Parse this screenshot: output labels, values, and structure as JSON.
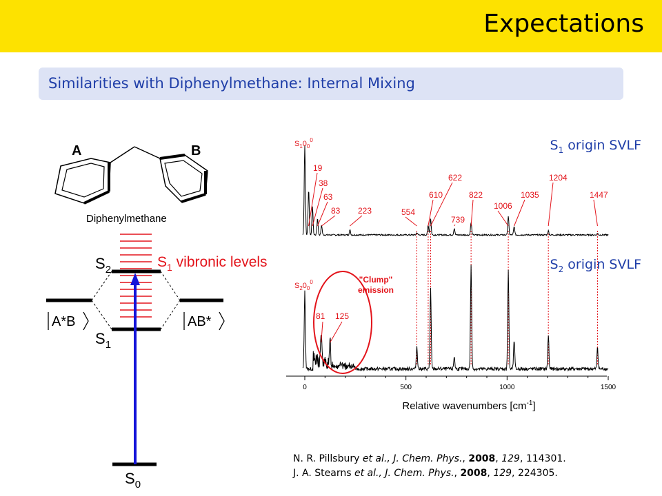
{
  "header": {
    "title": "Expectations",
    "banner_color": "#fde200"
  },
  "subtitle": {
    "text": "Similarities with Diphenylmethane: Internal Mixing",
    "color": "#1f3ea8"
  },
  "molecule": {
    "label_a": "A",
    "label_b": "B",
    "name": "Diphenylmethane"
  },
  "energy_diagram": {
    "s2": "S",
    "s2_sub": "2",
    "s1": "S",
    "s1_sub": "1",
    "s0": "S",
    "s0_sub": "0",
    "vibronic_s": "S",
    "vibronic_sub": "1",
    "vibronic_text": " vibronic levels",
    "left_ket": "A*B",
    "right_ket": "AB*",
    "vibronic_color": "#e3141b",
    "arrow_color": "#1414d9"
  },
  "chart_data": {
    "type": "line",
    "xlabel": "Relative wavenumbers [cm",
    "xlabel_sup": "-1",
    "xlabel_close": "]",
    "xlim": [
      0,
      1500
    ],
    "x_ticks": [
      0,
      500,
      1000,
      1500
    ],
    "panels": [
      {
        "label_s": "S",
        "label_sub": "1",
        "label_text": " origin SVLF",
        "origin_s": "S",
        "origin_sub": "1",
        "origin_main": "0",
        "origin_sub2": "0",
        "origin_sup": "0",
        "peaks": [
          {
            "label": "19",
            "x": 19,
            "h": 0.55
          },
          {
            "label": "38",
            "x": 38,
            "h": 0.35
          },
          {
            "label": "63",
            "x": 63,
            "h": 0.2
          },
          {
            "label": "83",
            "x": 83,
            "h": 0.12
          },
          {
            "label": "223",
            "x": 223,
            "h": 0.06
          },
          {
            "label": "554",
            "x": 554,
            "h": 0.03
          },
          {
            "label": "610",
            "x": 610,
            "h": 0.12
          },
          {
            "label": "622",
            "x": 622,
            "h": 0.2
          },
          {
            "label": "739",
            "x": 739,
            "h": 0.08
          },
          {
            "label": "822",
            "x": 822,
            "h": 0.15
          },
          {
            "label": "1006",
            "x": 1006,
            "h": 0.22
          },
          {
            "label": "1035",
            "x": 1035,
            "h": 0.1
          },
          {
            "label": "1204",
            "x": 1204,
            "h": 0.05
          },
          {
            "label": "1447",
            "x": 1447,
            "h": 0.02
          }
        ]
      },
      {
        "label_s": "S",
        "label_sub": "2",
        "label_text": " origin SVLF",
        "origin_s": "S",
        "origin_sub": "2",
        "origin_main": "0",
        "origin_sub2": "0",
        "origin_sup": "0",
        "clump_label_line1": "\"Clump\"",
        "clump_label_line2": "emission",
        "peaks": [
          {
            "label": "81",
            "x": 81,
            "h": 0.3
          },
          {
            "label": "125",
            "x": 125,
            "h": 0.22
          },
          {
            "label": "",
            "x": 554,
            "h": 0.22
          },
          {
            "label": "",
            "x": 622,
            "h": 0.78
          },
          {
            "label": "",
            "x": 739,
            "h": 0.12
          },
          {
            "label": "",
            "x": 822,
            "h": 1.0
          },
          {
            "label": "",
            "x": 1006,
            "h": 0.95
          },
          {
            "label": "",
            "x": 1035,
            "h": 0.28
          },
          {
            "label": "",
            "x": 1204,
            "h": 0.33
          },
          {
            "label": "",
            "x": 1447,
            "h": 0.22
          }
        ]
      }
    ],
    "dotted_guides_x": [
      554,
      610,
      622,
      822,
      1006,
      1204,
      1447
    ]
  },
  "references": [
    {
      "authors": "N. R. Pillsbury ",
      "etal": "et al.",
      "journal": ", J. Chem. Phys.",
      "sep1": ", ",
      "year": "2008",
      "sep2": ", ",
      "volume": "129",
      "tail": ", 114301."
    },
    {
      "authors": "J. A. Stearns ",
      "etal": "et al.",
      "journal": ", J. Chem. Phys.",
      "sep1": ", ",
      "year": "2008",
      "sep2": ", ",
      "volume": "129",
      "tail": ", 224305."
    }
  ]
}
